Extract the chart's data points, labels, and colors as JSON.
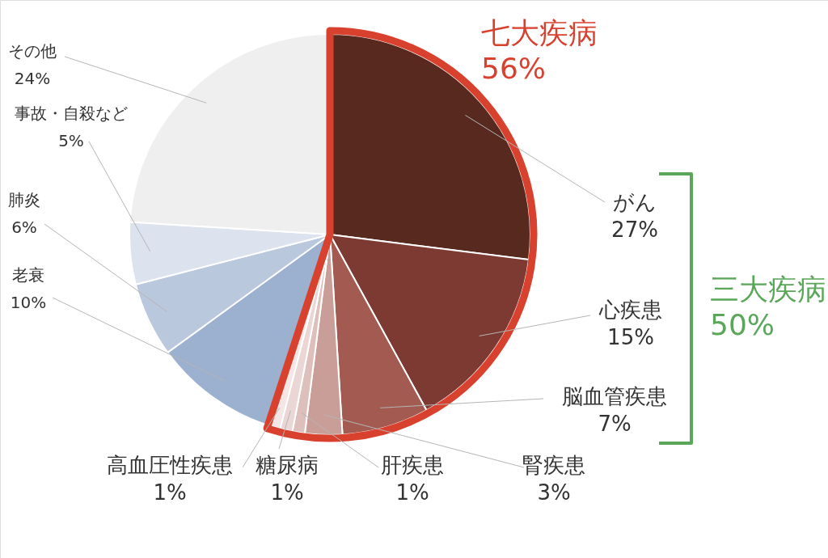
{
  "chart_data": {
    "type": "pie",
    "categories": [
      "がん",
      "心疾患",
      "脳血管疾患",
      "腎疾患",
      "肝疾患",
      "糖尿病",
      "高血圧性疾患",
      "老衰",
      "肺炎",
      "事故・自殺など",
      "その他"
    ],
    "values": [
      27,
      15,
      7,
      3,
      1,
      1,
      1,
      10,
      6,
      5,
      24
    ],
    "value_labels": [
      "27%",
      "15%",
      "7%",
      "3%",
      "1%",
      "1%",
      "1%",
      "10%",
      "6%",
      "5%",
      "24%"
    ],
    "colors": [
      "#58291f",
      "#7d3a33",
      "#a35a50",
      "#c99e98",
      "#ddbfbb",
      "#ead6d4",
      "#f3e6e5",
      "#9cb0d0",
      "#bac8de",
      "#dce2ee",
      "#efefef"
    ],
    "annotations": [
      "七大疾病\n56%",
      "三大疾病\n50%"
    ]
  }
}
